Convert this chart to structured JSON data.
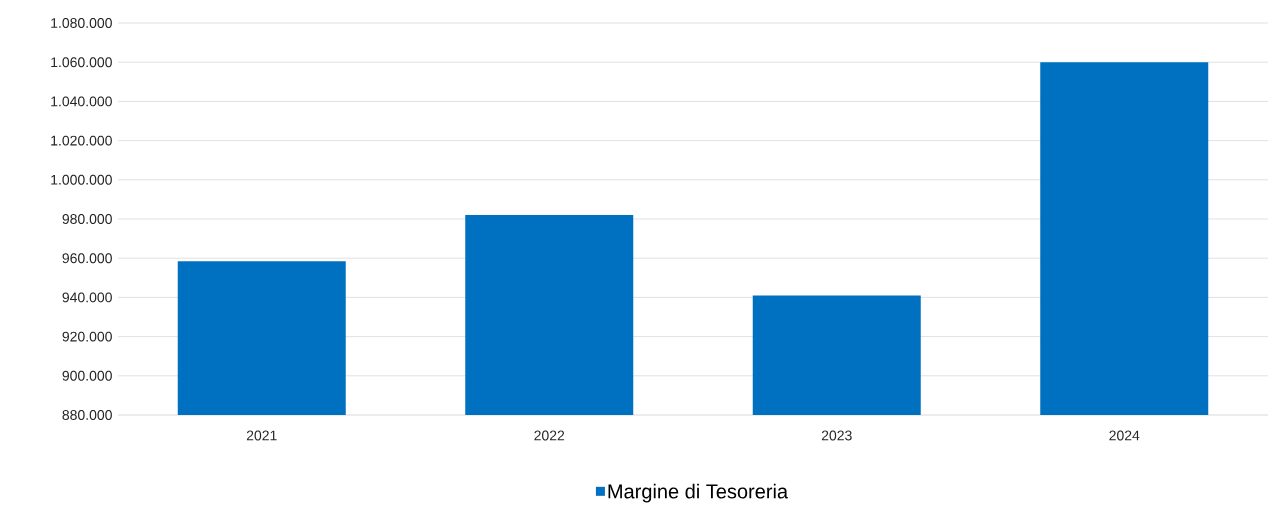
{
  "chart_data": {
    "type": "bar",
    "categories": [
      "2021",
      "2022",
      "2023",
      "2024"
    ],
    "series": [
      {
        "name": "Margine di Tesoreria",
        "color": "#0070c0",
        "values": [
          958500,
          982000,
          941000,
          1060000
        ]
      }
    ],
    "ylim": [
      880000,
      1080000
    ],
    "yticks": [
      {
        "value": 880000,
        "label": "880.000"
      },
      {
        "value": 900000,
        "label": "900.000"
      },
      {
        "value": 920000,
        "label": "920.000"
      },
      {
        "value": 940000,
        "label": "940.000"
      },
      {
        "value": 960000,
        "label": "960.000"
      },
      {
        "value": 980000,
        "label": "980.000"
      },
      {
        "value": 1000000,
        "label": "1.000.000"
      },
      {
        "value": 1020000,
        "label": "1.020.000"
      },
      {
        "value": 1040000,
        "label": "1.040.000"
      },
      {
        "value": 1060000,
        "label": "1.060.000"
      },
      {
        "value": 1080000,
        "label": "1.080.000"
      }
    ],
    "grid": "y",
    "legend": "bottom"
  }
}
